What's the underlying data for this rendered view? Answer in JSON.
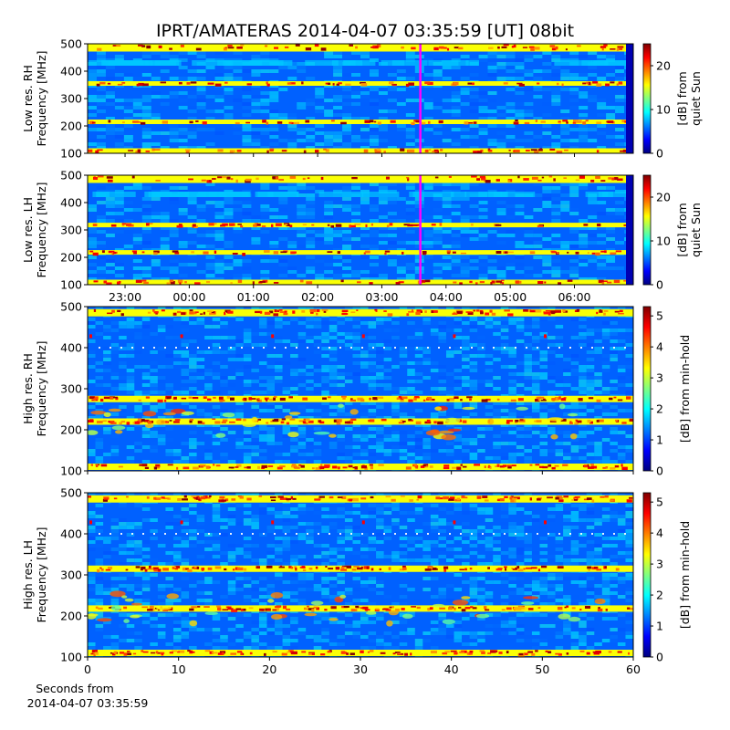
{
  "title": "IPRT/AMATERAS 2014-04-07 03:35:59 [UT]   08bit",
  "colormap": "jet",
  "colormap_colors": [
    "#00007f",
    "#0000ff",
    "#0080ff",
    "#00ffff",
    "#80ff80",
    "#ffff00",
    "#ff8000",
    "#ff0000",
    "#7f0000"
  ],
  "chart_data": [
    {
      "type": "heatmap",
      "panel": "low-res-rh",
      "ylabel_lines": [
        "Low res. RH",
        "Frequency [MHz]"
      ],
      "ylim": [
        100,
        500
      ],
      "yticks": [
        100,
        200,
        300,
        400,
        500
      ],
      "x_time_range_utc": [
        "22:25",
        "06:55"
      ],
      "xticks": [
        "23:00",
        "00:00",
        "01:00",
        "02:00",
        "03:00",
        "04:00",
        "05:00",
        "06:00"
      ],
      "xtick_labels_visible": false,
      "current_time_marker": "03:35:59",
      "marker_color": "#ff00ff",
      "bright_bands_mhz": [
        110,
        215,
        355,
        485
      ],
      "colorbar": {
        "label_lines": [
          "[dB] from",
          "quiet Sun"
        ],
        "range": [
          0,
          25
        ],
        "ticks": [
          0,
          10,
          20
        ]
      }
    },
    {
      "type": "heatmap",
      "panel": "low-res-lh",
      "ylabel_lines": [
        "Low res. LH",
        "Frequency [MHz]"
      ],
      "ylim": [
        100,
        500
      ],
      "yticks": [
        100,
        200,
        300,
        400,
        500
      ],
      "x_time_range_utc": [
        "22:25",
        "06:55"
      ],
      "xticks": [
        "23:00",
        "00:00",
        "01:00",
        "02:00",
        "03:00",
        "04:00",
        "05:00",
        "06:00"
      ],
      "xtick_labels_visible": true,
      "current_time_marker": "03:35:59",
      "marker_color": "#ff00ff",
      "bright_bands_mhz": [
        110,
        218,
        318,
        485
      ],
      "colorbar": {
        "label_lines": [
          "[dB] from",
          "quiet Sun"
        ],
        "range": [
          0,
          25
        ],
        "ticks": [
          0,
          10,
          20
        ]
      }
    },
    {
      "type": "heatmap",
      "panel": "high-res-rh",
      "ylabel_lines": [
        "High res. RH",
        "Frequency [MHz]"
      ],
      "ylim": [
        100,
        500
      ],
      "yticks": [
        100,
        200,
        300,
        400,
        500
      ],
      "xlim": [
        0,
        60
      ],
      "xticks": [
        0,
        10,
        20,
        30,
        40,
        50,
        60
      ],
      "xtick_labels_visible": false,
      "bright_bands_mhz": [
        110,
        220,
        275,
        485
      ],
      "colorbar": {
        "label": "[dB] from min-hold",
        "range": [
          0,
          5.3
        ],
        "ticks": [
          0,
          1,
          2,
          3,
          4,
          5
        ]
      }
    },
    {
      "type": "heatmap",
      "panel": "high-res-lh",
      "ylabel_lines": [
        "High res. LH",
        "Frequency [MHz]"
      ],
      "ylim": [
        100,
        500
      ],
      "yticks": [
        100,
        200,
        300,
        400,
        500
      ],
      "xlim": [
        0,
        60
      ],
      "xticks": [
        0,
        10,
        20,
        30,
        40,
        50,
        60
      ],
      "xtick_labels_visible": true,
      "xlabel_lines": [
        "Seconds from",
        "2014-04-07 03:35:59"
      ],
      "bright_bands_mhz": [
        110,
        218,
        315,
        485
      ],
      "colorbar": {
        "label": "[dB] from min-hold",
        "range": [
          0,
          5.3
        ],
        "ticks": [
          0,
          1,
          2,
          3,
          4,
          5
        ]
      }
    }
  ]
}
